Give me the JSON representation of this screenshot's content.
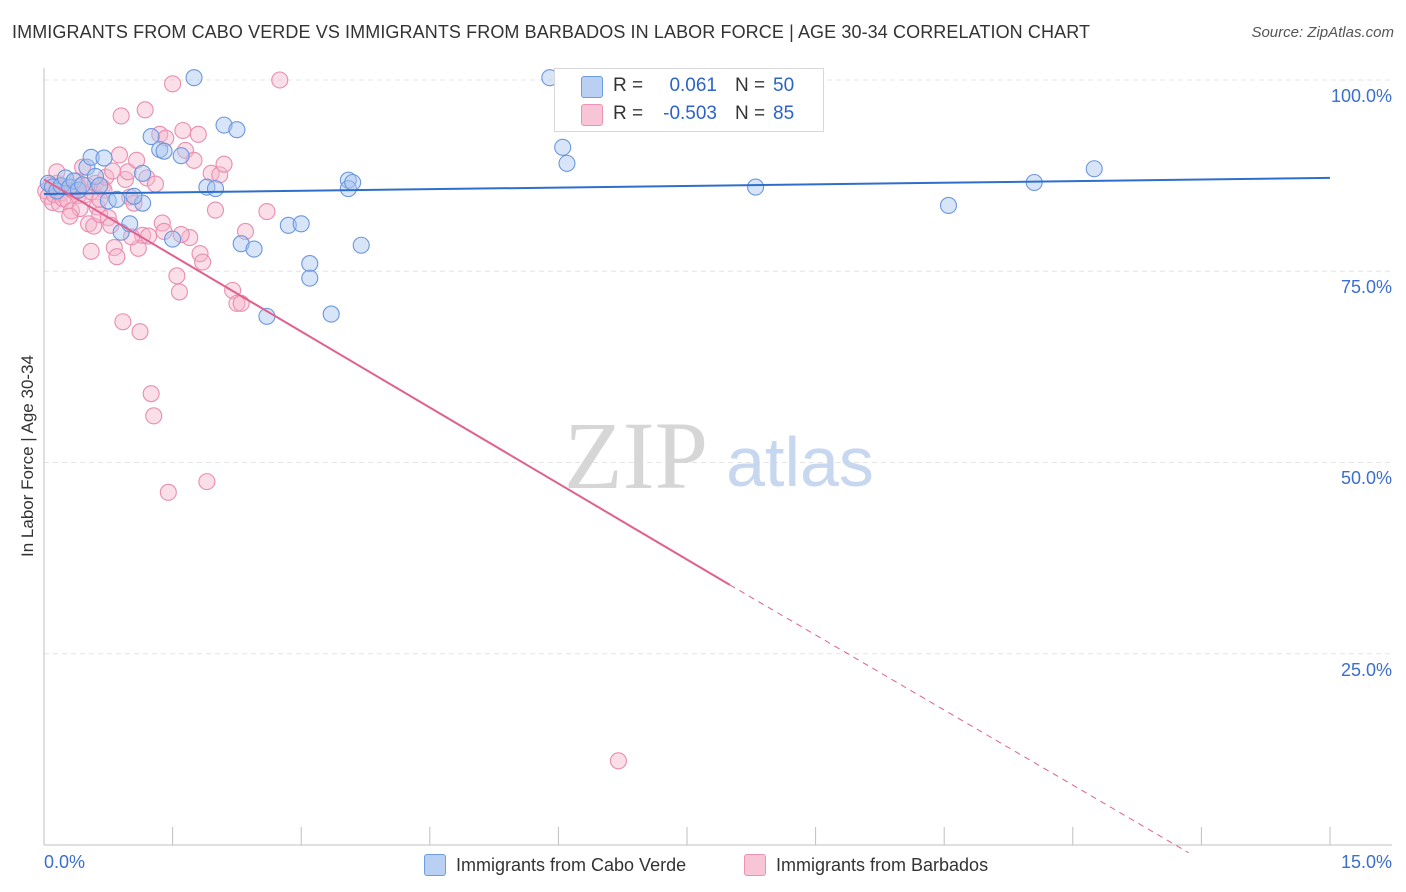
{
  "header": {
    "title": "IMMIGRANTS FROM CABO VERDE VS IMMIGRANTS FROM BARBADOS IN LABOR FORCE | AGE 30-34 CORRELATION CHART",
    "source": "Source: ZipAtlas.com"
  },
  "watermark": {
    "zip": "ZIP",
    "atlas": "atlas"
  },
  "stats_legend": {
    "row1": {
      "r_label": "R =",
      "r_value": "0.061",
      "n_label": "N =",
      "n_value": "50"
    },
    "row2": {
      "r_label": "R =",
      "r_value": "-0.503",
      "n_label": "N =",
      "n_value": "85"
    }
  },
  "bottom_legend": {
    "series1": "Immigrants from Cabo Verde",
    "series2": "Immigrants from Barbados"
  },
  "colors": {
    "blue_fill": "#a9c6f0",
    "blue_stroke": "#6a97de",
    "blue_line": "#2f6fcc",
    "pink_fill": "#f5b5cb",
    "pink_stroke": "#ea8db0",
    "pink_line": "#e0608f"
  },
  "chart_data": {
    "type": "scatter",
    "title": "IMMIGRANTS FROM CABO VERDE VS IMMIGRANTS FROM BARBADOS IN LABOR FORCE | AGE 30-34 CORRELATION CHART",
    "xlabel": "",
    "ylabel": "In Labor Force | Age 30-34",
    "xlim": [
      0,
      15
    ],
    "ylim": [
      0,
      100
    ],
    "x_tick_labels": [
      "0.0%",
      "15.0%"
    ],
    "y_tick_labels": [
      "100.0%",
      "75.0%",
      "50.0%",
      "25.0%"
    ],
    "y_ticks": [
      100,
      75,
      50,
      25
    ],
    "series": [
      {
        "name": "Immigrants from Cabo Verde",
        "r": 0.061,
        "n": 50,
        "trend": {
          "x": [
            0,
            15
          ],
          "y": [
            85.1,
            87.2
          ],
          "dashed_from_x": null
        },
        "points": [
          [
            0.05,
            86.5
          ],
          [
            0.1,
            86.0
          ],
          [
            0.15,
            85.5
          ],
          [
            0.2,
            86.2
          ],
          [
            0.25,
            87.2
          ],
          [
            0.3,
            86.0
          ],
          [
            0.35,
            86.8
          ],
          [
            0.4,
            85.6
          ],
          [
            0.45,
            86.3
          ],
          [
            0.5,
            88.6
          ],
          [
            0.55,
            89.9
          ],
          [
            0.6,
            87.4
          ],
          [
            0.7,
            89.8
          ],
          [
            0.75,
            84.2
          ],
          [
            0.85,
            84.4
          ],
          [
            0.9,
            80.1
          ],
          [
            1.0,
            81.2
          ],
          [
            1.15,
            87.8
          ],
          [
            1.15,
            83.9
          ],
          [
            1.25,
            92.6
          ],
          [
            1.35,
            90.9
          ],
          [
            1.4,
            90.7
          ],
          [
            1.5,
            79.2
          ],
          [
            1.6,
            90.1
          ],
          [
            1.75,
            100.3
          ],
          [
            1.9,
            86.0
          ],
          [
            2.0,
            85.8
          ],
          [
            2.1,
            94.1
          ],
          [
            2.25,
            93.5
          ],
          [
            2.3,
            78.6
          ],
          [
            2.45,
            77.9
          ],
          [
            2.6,
            69.1
          ],
          [
            2.85,
            81.0
          ],
          [
            3.0,
            81.2
          ],
          [
            3.1,
            76.0
          ],
          [
            3.1,
            74.1
          ],
          [
            3.35,
            69.4
          ],
          [
            3.55,
            86.9
          ],
          [
            3.55,
            85.8
          ],
          [
            3.7,
            78.4
          ],
          [
            5.9,
            100.3
          ],
          [
            6.05,
            91.2
          ],
          [
            6.1,
            89.1
          ],
          [
            8.3,
            86.0
          ],
          [
            10.55,
            83.6
          ],
          [
            11.55,
            86.6
          ],
          [
            12.25,
            88.4
          ],
          [
            3.6,
            86.6
          ],
          [
            0.65,
            86.2
          ],
          [
            1.05,
            84.8
          ]
        ]
      },
      {
        "name": "Immigrants from Barbados",
        "r": -0.503,
        "n": 85,
        "trend": {
          "x": [
            0,
            8.0,
            13.35
          ],
          "y": [
            87.0,
            34.0,
            -1.0
          ],
          "dashed_from_x": 8.0
        },
        "points": [
          [
            0.02,
            85.5
          ],
          [
            0.05,
            84.8
          ],
          [
            0.08,
            86.3
          ],
          [
            0.1,
            84.0
          ],
          [
            0.12,
            85.0
          ],
          [
            0.15,
            86.5
          ],
          [
            0.18,
            83.8
          ],
          [
            0.2,
            85.2
          ],
          [
            0.22,
            84.5
          ],
          [
            0.25,
            86.0
          ],
          [
            0.28,
            84.2
          ],
          [
            0.3,
            85.8
          ],
          [
            0.32,
            82.9
          ],
          [
            0.35,
            85.5
          ],
          [
            0.38,
            86.8
          ],
          [
            0.4,
            84.9
          ],
          [
            0.42,
            83.2
          ],
          [
            0.45,
            88.6
          ],
          [
            0.48,
            85.0
          ],
          [
            0.5,
            86.2
          ],
          [
            0.52,
            81.2
          ],
          [
            0.55,
            85.4
          ],
          [
            0.58,
            80.9
          ],
          [
            0.6,
            86.5
          ],
          [
            0.62,
            83.4
          ],
          [
            0.65,
            82.4
          ],
          [
            0.68,
            86.0
          ],
          [
            0.7,
            85.6
          ],
          [
            0.72,
            87.3
          ],
          [
            0.75,
            82.0
          ],
          [
            0.78,
            81.0
          ],
          [
            0.8,
            88.1
          ],
          [
            0.82,
            78.1
          ],
          [
            0.85,
            76.9
          ],
          [
            0.88,
            90.2
          ],
          [
            0.9,
            95.3
          ],
          [
            0.92,
            68.4
          ],
          [
            0.95,
            87.0
          ],
          [
            0.98,
            88.0
          ],
          [
            1.0,
            84.7
          ],
          [
            1.05,
            83.9
          ],
          [
            1.08,
            89.5
          ],
          [
            1.1,
            78.0
          ],
          [
            1.12,
            67.1
          ],
          [
            1.15,
            79.7
          ],
          [
            1.18,
            96.1
          ],
          [
            1.2,
            87.2
          ],
          [
            1.25,
            59.0
          ],
          [
            1.28,
            56.1
          ],
          [
            1.3,
            86.4
          ],
          [
            1.35,
            92.9
          ],
          [
            1.38,
            81.3
          ],
          [
            1.4,
            80.2
          ],
          [
            1.42,
            92.4
          ],
          [
            1.45,
            46.1
          ],
          [
            1.5,
            99.5
          ],
          [
            1.55,
            74.4
          ],
          [
            1.58,
            72.3
          ],
          [
            1.62,
            93.4
          ],
          [
            1.65,
            90.8
          ],
          [
            1.7,
            79.4
          ],
          [
            1.75,
            89.5
          ],
          [
            1.8,
            92.9
          ],
          [
            1.82,
            77.3
          ],
          [
            1.85,
            76.2
          ],
          [
            1.9,
            47.5
          ],
          [
            1.95,
            87.8
          ],
          [
            2.0,
            83.0
          ],
          [
            2.05,
            87.6
          ],
          [
            2.1,
            89.0
          ],
          [
            2.2,
            72.5
          ],
          [
            2.25,
            70.8
          ],
          [
            2.3,
            70.8
          ],
          [
            2.35,
            80.2
          ],
          [
            2.6,
            82.8
          ],
          [
            2.75,
            100.0
          ],
          [
            0.55,
            77.6
          ],
          [
            0.65,
            84.4
          ],
          [
            1.02,
            79.5
          ],
          [
            0.4,
            86.0
          ],
          [
            0.3,
            82.2
          ],
          [
            1.22,
            79.6
          ],
          [
            6.7,
            11.0
          ],
          [
            1.6,
            79.8
          ],
          [
            0.15,
            88.0
          ]
        ]
      }
    ]
  }
}
